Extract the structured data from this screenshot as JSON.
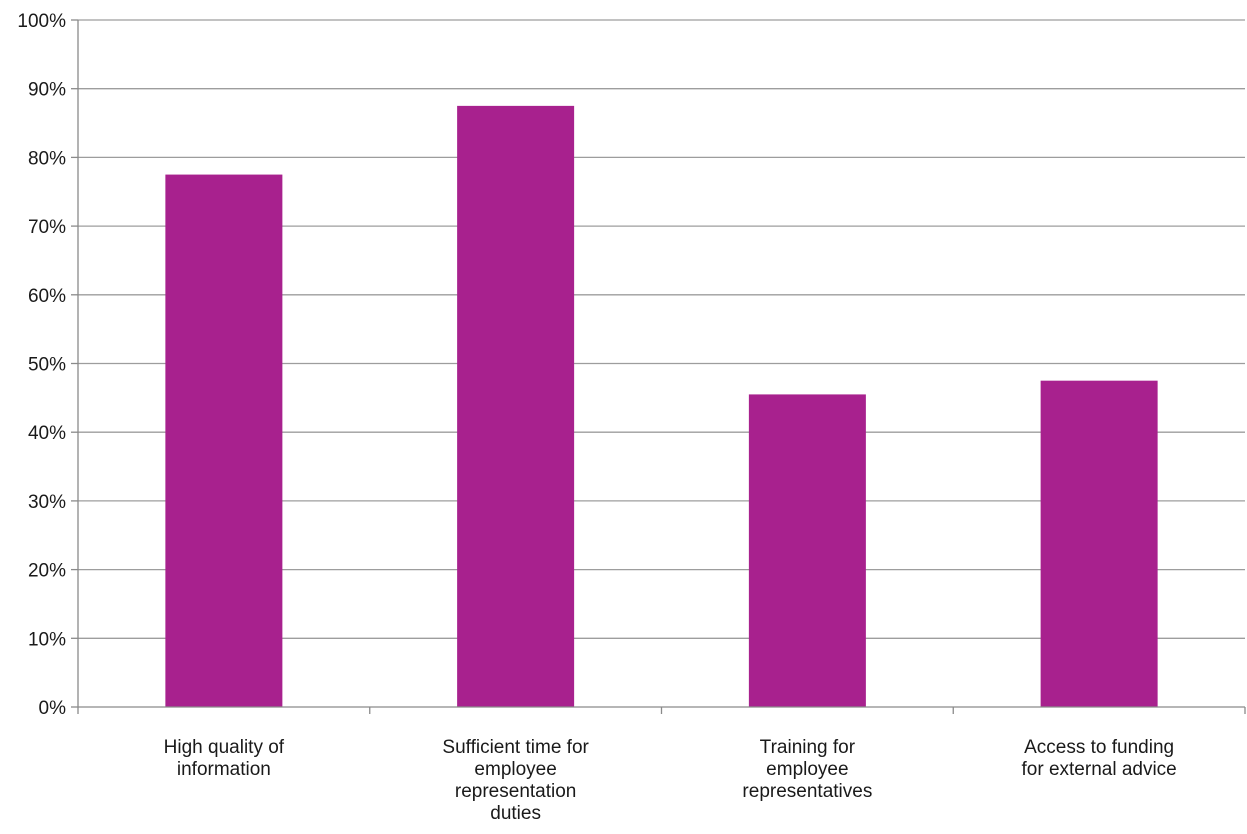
{
  "chart_data": {
    "type": "bar",
    "title": "",
    "xlabel": "",
    "ylabel": "",
    "categories": [
      [
        "High quality of",
        "information"
      ],
      [
        "Sufficient time for",
        "employee",
        "representation",
        "duties"
      ],
      [
        "Training for",
        "employee",
        "representatives"
      ],
      [
        "Access to funding",
        "for external advice"
      ]
    ],
    "values": [
      77.5,
      87.5,
      45.5,
      47.5
    ],
    "ylim": [
      0,
      100
    ],
    "y_ticks": [
      "0%",
      "10%",
      "20%",
      "30%",
      "40%",
      "50%",
      "60%",
      "70%",
      "80%",
      "90%",
      "100%"
    ],
    "grid": true,
    "legend": "none",
    "colors": {
      "bar": "#a8218e",
      "grid": "#9d9d9d",
      "axis": "#8a8a8a",
      "text": "#1a1a1a"
    }
  }
}
